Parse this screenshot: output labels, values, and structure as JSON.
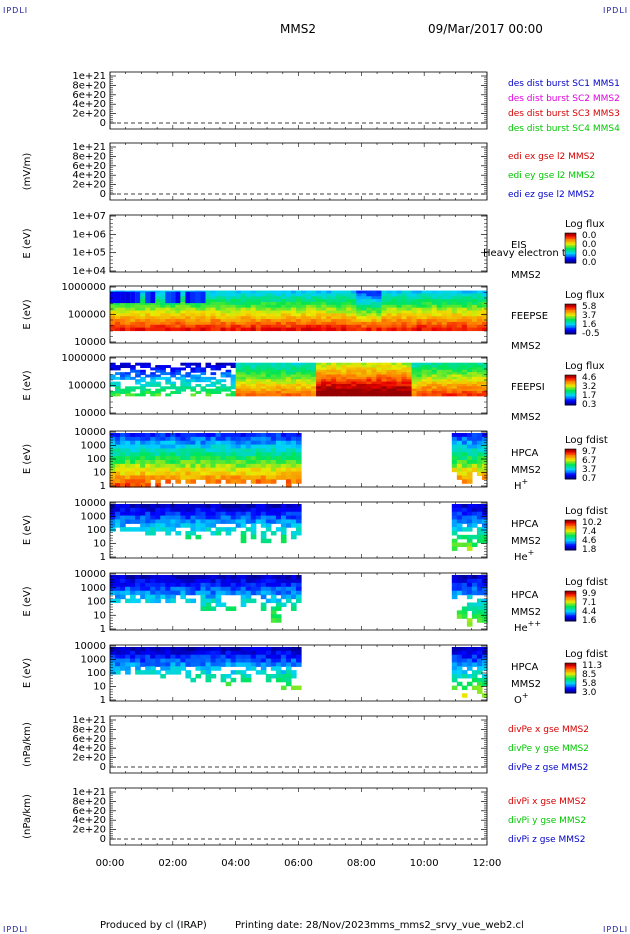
{
  "header": {
    "corner_tl": "IPDLI",
    "corner_tr": "IPDLI",
    "spacecraft": "MMS2",
    "date": "09/Mar/2017 00:00"
  },
  "footer": {
    "credit": "Produced by cl (IRAP)",
    "printing": "Printing date: 28/Nov/2023",
    "script": "mms_mms2_srvy_vue_web2.cl",
    "corner_bl": "IPDLI",
    "corner_br": "IPDLI"
  },
  "x_ticks": [
    "00:00",
    "02:00",
    "04:00",
    "06:00",
    "08:00",
    "10:00",
    "12:00"
  ],
  "colors": {
    "blue": "#0000c8",
    "magenta": "#e000e0",
    "red": "#d80000",
    "green": "#00c800",
    "dark_blue": "#0000a0"
  },
  "chart_data": [
    {
      "type": "line",
      "ylabel": "",
      "yticks": [
        "1e+21",
        "8e+20",
        "6e+20",
        "4e+20",
        "2e+20",
        "0"
      ],
      "legend": [
        {
          "text": "des dist burst SC1 MMS1",
          "color": "#0000c8"
        },
        {
          "text": "des dist burst SC2 MMS2",
          "color": "#e000e0"
        },
        {
          "text": "des dist burst SC3 MMS3",
          "color": "#d80000"
        },
        {
          "text": "des dist burst SC4 MMS4",
          "color": "#00c800"
        }
      ]
    },
    {
      "type": "line",
      "ylabel": "(mV/m)",
      "yticks": [
        "1e+21",
        "8e+20",
        "6e+20",
        "4e+20",
        "2e+20",
        "0"
      ],
      "legend": [
        {
          "text": "edi ex gse l2 MMS2",
          "color": "#d80000"
        },
        {
          "text": "edi ey gse l2 MMS2",
          "color": "#00c800"
        },
        {
          "text": "edi ez gse l2 MMS2",
          "color": "#0000c8"
        }
      ]
    },
    {
      "type": "heatmap",
      "ylabel": "E (eV)",
      "yticks": [
        "1e+07",
        "1e+06",
        "1e+05",
        "1e+04"
      ],
      "inst": "EIS",
      "sc": "MMS2",
      "overlay": "Heavy electron to",
      "cbar_title": "Log flux",
      "cbar_ticks": [
        "0.0",
        "0.0",
        "0.0",
        "0.0"
      ]
    },
    {
      "type": "heatmap",
      "ylabel": "E (eV)",
      "yticks": [
        "1000000",
        "100000",
        "10000"
      ],
      "inst": "FEEPSE",
      "sc": "MMS2",
      "cbar_title": "Log flux",
      "cbar_ticks": [
        "5.8",
        "3.7",
        "1.6",
        "-0.5"
      ]
    },
    {
      "type": "heatmap",
      "ylabel": "E (eV)",
      "yticks": [
        "1000000",
        "100000",
        "10000"
      ],
      "inst": "FEEPSI",
      "sc": "MMS2",
      "cbar_title": "Log flux",
      "cbar_ticks": [
        "4.6",
        "3.2",
        "1.7",
        "0.3"
      ]
    },
    {
      "type": "heatmap",
      "ylabel": "E (eV)",
      "yticks": [
        "10000",
        "1000",
        "100",
        "10",
        "1"
      ],
      "inst": "HPCA",
      "sc": "MMS2",
      "species": "H",
      "charge": "+",
      "cbar_title": "Log fdist",
      "cbar_ticks": [
        "9.7",
        "6.7",
        "3.7",
        "0.7"
      ]
    },
    {
      "type": "heatmap",
      "ylabel": "E (eV)",
      "yticks": [
        "10000",
        "1000",
        "100",
        "10",
        "1"
      ],
      "inst": "HPCA",
      "sc": "MMS2",
      "species": "He",
      "charge": "+",
      "cbar_title": "Log fdist",
      "cbar_ticks": [
        "10.2",
        "7.4",
        "4.6",
        "1.8"
      ]
    },
    {
      "type": "heatmap",
      "ylabel": "E (eV)",
      "yticks": [
        "10000",
        "1000",
        "100",
        "10",
        "1"
      ],
      "inst": "HPCA",
      "sc": "MMS2",
      "species": "He",
      "charge": "++",
      "cbar_title": "Log fdist",
      "cbar_ticks": [
        "9.9",
        "7.1",
        "4.4",
        "1.6"
      ]
    },
    {
      "type": "heatmap",
      "ylabel": "E (eV)",
      "yticks": [
        "10000",
        "1000",
        "100",
        "10",
        "1"
      ],
      "inst": "HPCA",
      "sc": "MMS2",
      "species": "O",
      "charge": "+",
      "cbar_title": "Log fdist",
      "cbar_ticks": [
        "11.3",
        "8.5",
        "5.8",
        "3.0"
      ]
    },
    {
      "type": "line",
      "ylabel": "(nPa/km)",
      "yticks": [
        "1e+21",
        "8e+20",
        "6e+20",
        "4e+20",
        "2e+20",
        "0"
      ],
      "legend": [
        {
          "text": "divPe x gse MMS2",
          "color": "#d80000"
        },
        {
          "text": "divPe y gse MMS2",
          "color": "#00c800"
        },
        {
          "text": "divPe z gse MMS2",
          "color": "#0000c8"
        }
      ]
    },
    {
      "type": "line",
      "ylabel": "(nPa/km)",
      "yticks": [
        "1e+21",
        "8e+20",
        "6e+20",
        "4e+20",
        "2e+20",
        "0"
      ],
      "legend": [
        {
          "text": "divPi x gse MMS2",
          "color": "#d80000"
        },
        {
          "text": "divPi y gse MMS2",
          "color": "#00c800"
        },
        {
          "text": "divPi z gse MMS2",
          "color": "#0000c8"
        }
      ]
    }
  ]
}
